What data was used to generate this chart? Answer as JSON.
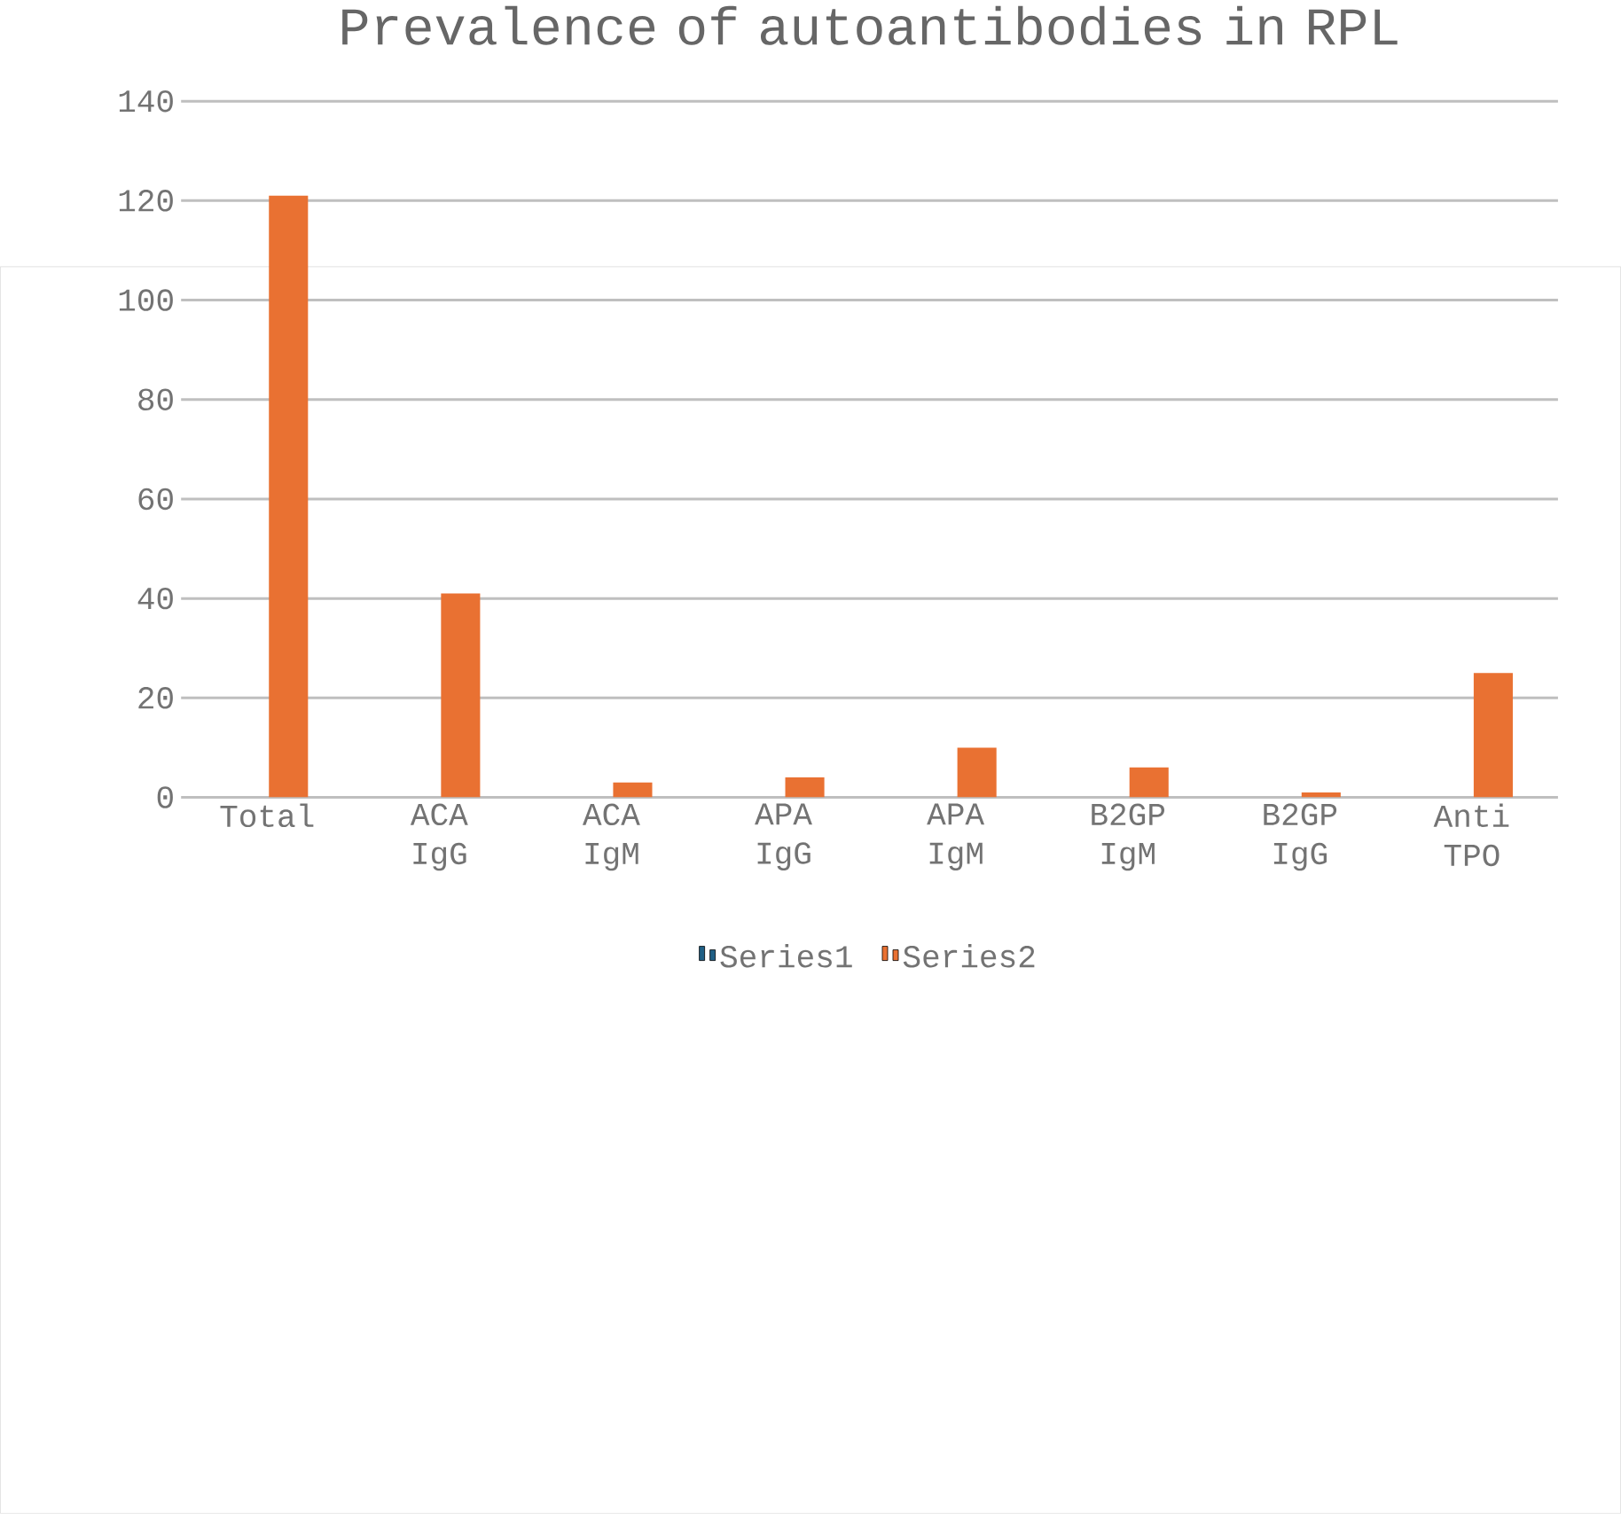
{
  "chart_data": {
    "type": "bar",
    "title": "Prevalence of autoantibodies in RPL",
    "categories": [
      "Total",
      "ACA IgG",
      "ACA IgM",
      "APA IgG",
      "APA IgM",
      "B2GP IgM",
      "B2GP IgG",
      "Anti TPO"
    ],
    "series": [
      {
        "name": "Series1",
        "color": "#1f5f85",
        "values": [
          null,
          null,
          null,
          null,
          null,
          null,
          null,
          null
        ]
      },
      {
        "name": "Series2",
        "color": "#e97132",
        "values": [
          121,
          41,
          3,
          4,
          10,
          6,
          1,
          25
        ]
      }
    ],
    "ylim": [
      0,
      140
    ],
    "yticks": [
      0,
      20,
      40,
      60,
      80,
      100,
      120,
      140
    ],
    "grid": "y",
    "legend": "bottom"
  }
}
